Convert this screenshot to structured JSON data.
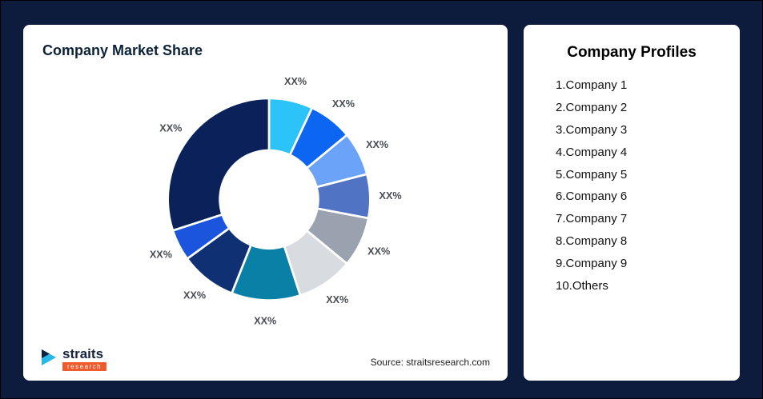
{
  "left_card": {
    "title": "Company Market Share",
    "source": "Source: straitsresearch.com"
  },
  "logo": {
    "text": "straits",
    "subtext": "research",
    "mark_color": "#29b9e8",
    "mark_accent": "#0c2340",
    "badge_color": "#ee5b2d"
  },
  "right_card": {
    "title": "Company Profiles",
    "items": [
      "1.Company 1",
      "2.Company 2",
      "3.Company 3",
      "4.Company 4",
      "5.Company 5",
      "6.Company 6",
      "7.Company 7",
      "8.Company 8",
      "9.Company 9",
      "10.Others"
    ]
  },
  "chart_data": {
    "type": "pie",
    "subtype": "donut",
    "title": "Company Market Share",
    "start_angle_deg": 0,
    "direction": "clockwise",
    "data_labels_shown": "XX%",
    "segments": [
      {
        "label": "XX%",
        "value": 7,
        "color": "#2cc3f8"
      },
      {
        "label": "XX%",
        "value": 7,
        "color": "#0d66f2"
      },
      {
        "label": "XX%",
        "value": 7,
        "color": "#6ba3f8"
      },
      {
        "label": "XX%",
        "value": 7,
        "color": "#5173c3"
      },
      {
        "label": "XX%",
        "value": 8,
        "color": "#99a2ae"
      },
      {
        "label": "XX%",
        "value": 9,
        "color": "#d8dce1"
      },
      {
        "label": "XX%",
        "value": 11,
        "color": "#0b80a7"
      },
      {
        "label": "XX%",
        "value": 9,
        "color": "#0f3174"
      },
      {
        "label": "XX%",
        "value": 5,
        "color": "#1b55dd"
      },
      {
        "label": "XX%",
        "value": 30,
        "color": "#0b2159"
      }
    ]
  }
}
